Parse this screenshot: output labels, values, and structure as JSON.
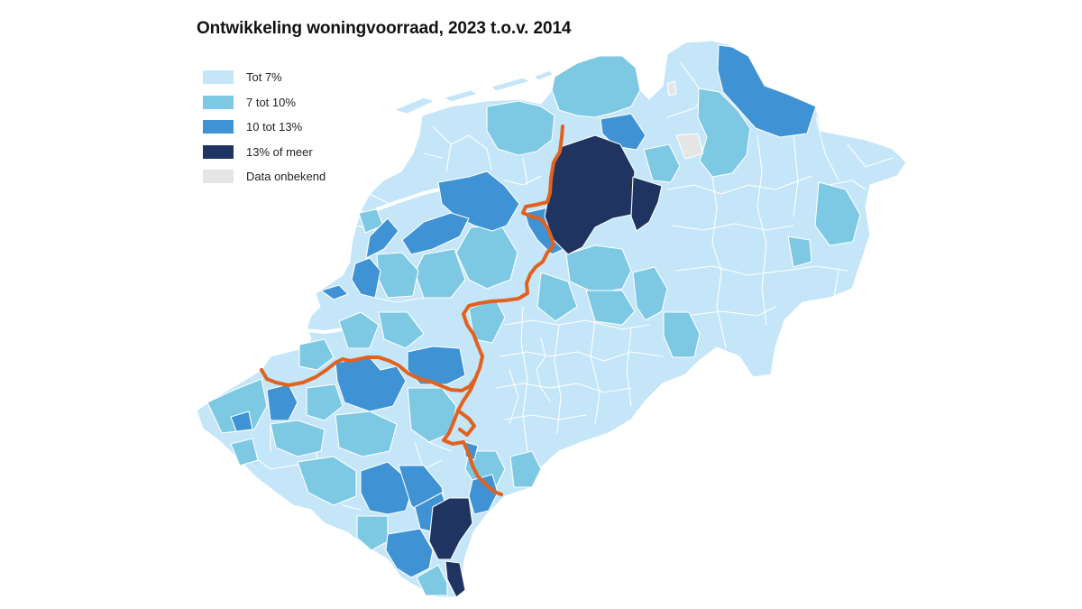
{
  "title": "Ontwikkeling woningvoorraad, 2023 t.o.v. 2014",
  "legend": {
    "items": [
      {
        "label": "Tot 7%",
        "color": "#c4e6f8"
      },
      {
        "label": "7 tot 10%",
        "color": "#7dc9e3"
      },
      {
        "label": "10 tot 13%",
        "color": "#3f93d4"
      },
      {
        "label": "13% of meer",
        "color": "#1f3461"
      },
      {
        "label": "Data onbekend",
        "color": "#e5e5e5"
      }
    ]
  },
  "map": {
    "boundary_color": "#e0621e",
    "border_color": "#ffffff"
  }
}
